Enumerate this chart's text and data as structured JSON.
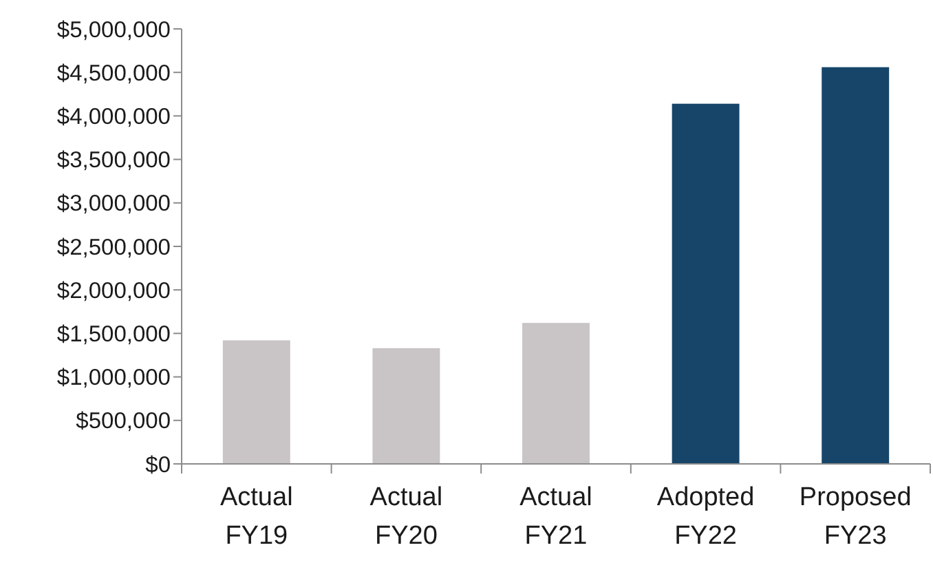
{
  "chart_data": {
    "type": "bar",
    "categories": [
      "Actual FY19",
      "Actual FY20",
      "Actual FY21",
      "Adopted FY22",
      "Proposed FY23"
    ],
    "values": [
      1420000,
      1330000,
      1620000,
      4140000,
      4560000
    ],
    "colors": [
      "#c9c4c5",
      "#c9c4c5",
      "#c9c4c5",
      "#174569",
      "#174569"
    ],
    "ylim": [
      0,
      5000000
    ],
    "yticks": [
      {
        "value": 0,
        "label": "$0"
      },
      {
        "value": 500000,
        "label": "$500,000"
      },
      {
        "value": 1000000,
        "label": "$1,000,000"
      },
      {
        "value": 1500000,
        "label": "$1,500,000"
      },
      {
        "value": 2000000,
        "label": "$2,000,000"
      },
      {
        "value": 2500000,
        "label": "$2,500,000"
      },
      {
        "value": 3000000,
        "label": "$3,000,000"
      },
      {
        "value": 3500000,
        "label": "$3,500,000"
      },
      {
        "value": 4000000,
        "label": "$4,000,000"
      },
      {
        "value": 4500000,
        "label": "$4,500,000"
      },
      {
        "value": 5000000,
        "label": "$5,000,000"
      }
    ]
  }
}
